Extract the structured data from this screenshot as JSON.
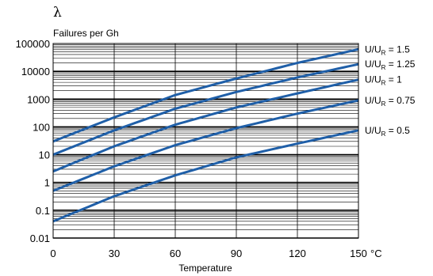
{
  "chart_data": {
    "type": "line",
    "symbol": "λ",
    "ylabel": "Failures per Gh",
    "xlabel": "Temperature",
    "x_unit": "°C",
    "xlim": [
      0,
      150
    ],
    "ylim": [
      0.01,
      100000
    ],
    "y_scale": "log",
    "grid": true,
    "x_ticks": [
      "0",
      "30",
      "60",
      "90",
      "120",
      "150"
    ],
    "y_ticks": [
      "100000",
      "10000",
      "1000",
      "100",
      "10",
      "1",
      "0.1",
      "0.01"
    ],
    "series": [
      {
        "name": "U/U_R = 1.5",
        "label_prefix": "U/U",
        "label_sub": "R",
        "label_suffix": " = 1.5",
        "x": [
          0,
          30,
          60,
          90,
          120,
          150
        ],
        "y": [
          30,
          220,
          1400,
          5500,
          20000,
          62000
        ]
      },
      {
        "name": "U/U_R = 1.25",
        "label_prefix": "U/U",
        "label_sub": "R",
        "label_suffix": " = 1.25",
        "x": [
          0,
          30,
          60,
          90,
          120,
          150
        ],
        "y": [
          10,
          75,
          450,
          1800,
          6000,
          18000
        ]
      },
      {
        "name": "U/U_R = 1",
        "label_prefix": "U/U",
        "label_sub": "R",
        "label_suffix": " = 1",
        "x": [
          0,
          30,
          60,
          90,
          120,
          150
        ],
        "y": [
          2.5,
          20,
          120,
          500,
          1600,
          5000
        ]
      },
      {
        "name": "U/U_R = 0.75",
        "label_prefix": "U/U",
        "label_sub": "R",
        "label_suffix": " = 0.75",
        "x": [
          0,
          30,
          60,
          90,
          120,
          150
        ],
        "y": [
          0.5,
          3.8,
          22,
          90,
          300,
          900
        ]
      },
      {
        "name": "U/U_R = 0.5",
        "label_prefix": "U/U",
        "label_sub": "R",
        "label_suffix": " = 0.5",
        "x": [
          0,
          30,
          60,
          90,
          120,
          150
        ],
        "y": [
          0.04,
          0.32,
          1.8,
          8,
          25,
          75
        ]
      }
    ],
    "line_color": "#1f5fa8"
  }
}
